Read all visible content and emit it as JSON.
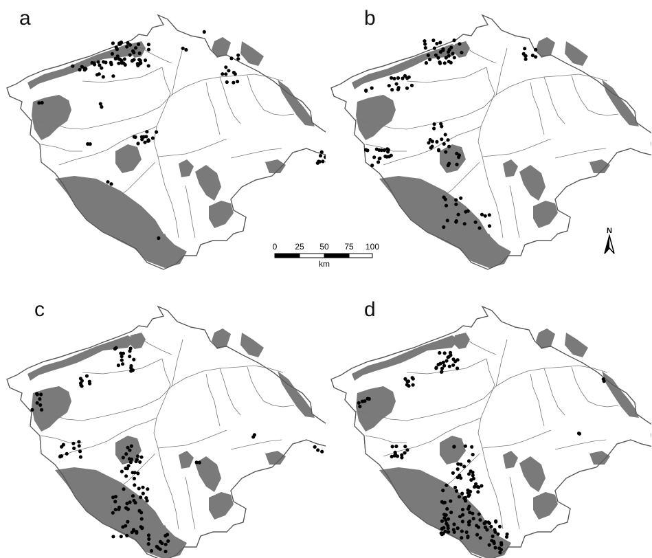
{
  "panels": [
    {
      "id": "a",
      "label": "a"
    },
    {
      "id": "b",
      "label": "b"
    },
    {
      "id": "c",
      "label": "c"
    },
    {
      "id": "d",
      "label": "d"
    }
  ],
  "scale_bar": {
    "ticks": [
      "0",
      "25",
      "50",
      "75",
      "100"
    ],
    "unit": "km"
  },
  "north_arrow": {
    "label": "N"
  },
  "colors": {
    "region_fill": "#7a7a7a",
    "outline": "#555555",
    "river": "#777777",
    "point": "#000000",
    "background": "#ffffff"
  }
}
